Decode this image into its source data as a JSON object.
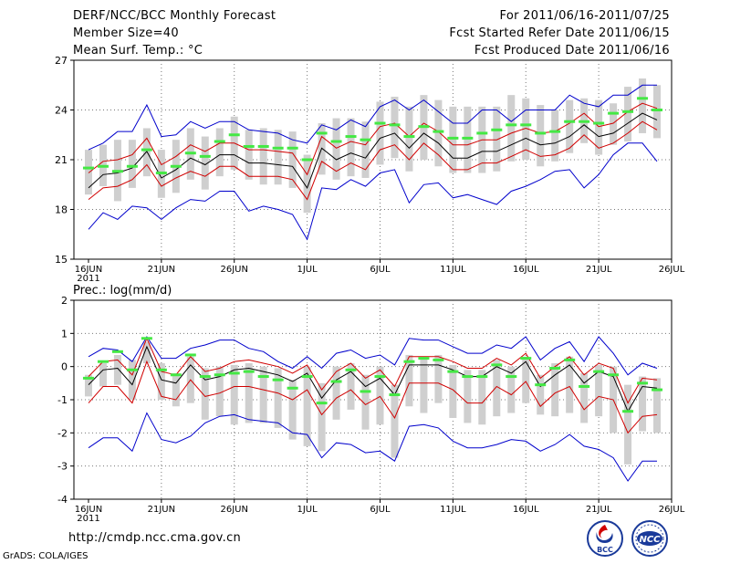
{
  "header": {
    "title": "DERF/NCC/BCC Monthly Forecast",
    "member_size": "Member Size=40",
    "period": "For 2011/06/16-2011/07/25",
    "start_date": "Fcst Started Refer Date 2011/06/15",
    "produced_date": "Fcst Produced Date 2011/06/16"
  },
  "footer": {
    "url": "http://cmdp.ncc.cma.gov.cn",
    "grads": "GrADS: COLA/IGES",
    "logos": [
      "BCC",
      "NCC"
    ]
  },
  "colors": {
    "ensemble_mean": "#000000",
    "std_band": "#d00000",
    "min_max": "#0000cc",
    "member_bar": "#cfcfcf",
    "climatology": "#44e844",
    "grid": "#777777"
  },
  "chart_data": [
    {
      "type": "line",
      "title": "Mean Surf. Temp.: °C",
      "xlabel": "",
      "ylabel": "",
      "x_tick_labels": [
        "16JUN",
        "21JUN",
        "26JUN",
        "1JUL",
        "6JUL",
        "11JUL",
        "16JUL",
        "21JUL",
        "26JUL"
      ],
      "x_tick_days": [
        0,
        5,
        10,
        15,
        20,
        25,
        30,
        35,
        40
      ],
      "x_year_label": "2011",
      "xlim": [
        -1,
        40
      ],
      "ylim": [
        15,
        27
      ],
      "y_ticks": [
        15,
        18,
        21,
        24,
        27
      ],
      "days": [
        0,
        1,
        2,
        3,
        4,
        5,
        6,
        7,
        8,
        9,
        10,
        11,
        12,
        13,
        14,
        15,
        16,
        17,
        18,
        19,
        20,
        21,
        22,
        23,
        24,
        25,
        26,
        27,
        28,
        29,
        30,
        31,
        32,
        33,
        34,
        35,
        36,
        37,
        38,
        39
      ],
      "series": [
        {
          "name": "Ensemble mean",
          "color": "#000000",
          "values": [
            19.3,
            20.1,
            20.2,
            20.5,
            21.5,
            19.9,
            20.4,
            21.1,
            20.7,
            21.3,
            21.3,
            20.8,
            20.8,
            20.7,
            20.6,
            19.3,
            21.7,
            21.0,
            21.4,
            21.1,
            22.3,
            22.6,
            21.7,
            22.6,
            22.0,
            21.1,
            21.1,
            21.5,
            21.5,
            21.9,
            22.3,
            21.9,
            22.0,
            22.4,
            23.1,
            22.4,
            22.6,
            23.2,
            23.8,
            23.4
          ]
        },
        {
          "name": "Mean + std",
          "color": "#d00000",
          "values": [
            20.2,
            20.9,
            21.0,
            21.3,
            22.3,
            20.7,
            21.2,
            21.9,
            21.5,
            22.0,
            22.0,
            21.6,
            21.6,
            21.5,
            21.4,
            20.1,
            22.4,
            21.7,
            22.1,
            21.9,
            23.0,
            23.2,
            22.4,
            23.2,
            22.7,
            21.9,
            21.9,
            22.2,
            22.2,
            22.6,
            22.9,
            22.6,
            22.7,
            23.2,
            23.8,
            23.0,
            23.2,
            23.9,
            24.4,
            24.1
          ]
        },
        {
          "name": "Mean - std",
          "color": "#d00000",
          "values": [
            18.6,
            19.3,
            19.4,
            19.8,
            20.7,
            19.4,
            19.9,
            20.3,
            20.0,
            20.6,
            20.6,
            20.0,
            20.0,
            20.0,
            19.8,
            18.6,
            20.9,
            20.3,
            20.8,
            20.4,
            21.6,
            21.9,
            21.0,
            22.0,
            21.3,
            20.4,
            20.4,
            20.8,
            20.8,
            21.2,
            21.6,
            21.2,
            21.3,
            21.7,
            22.5,
            21.7,
            22.0,
            22.6,
            23.3,
            22.8
          ]
        },
        {
          "name": "Max",
          "color": "#0000cc",
          "values": [
            21.6,
            22.0,
            22.7,
            22.7,
            24.3,
            22.4,
            22.5,
            23.3,
            22.9,
            23.3,
            23.3,
            22.8,
            22.7,
            22.6,
            22.2,
            22.0,
            23.1,
            22.8,
            23.4,
            23.0,
            24.2,
            24.6,
            24.0,
            24.6,
            23.9,
            23.2,
            23.2,
            24.0,
            24.0,
            23.3,
            24.0,
            24.0,
            24.0,
            24.9,
            24.4,
            24.2,
            24.9,
            24.9,
            25.5,
            25.5
          ]
        },
        {
          "name": "Min",
          "color": "#0000cc",
          "values": [
            16.8,
            17.8,
            17.4,
            18.2,
            18.1,
            17.4,
            18.1,
            18.6,
            18.5,
            19.1,
            19.1,
            17.9,
            18.2,
            18.0,
            17.7,
            16.2,
            19.3,
            19.2,
            19.8,
            19.4,
            20.2,
            20.4,
            18.4,
            19.5,
            19.6,
            18.7,
            18.9,
            18.6,
            18.3,
            19.1,
            19.4,
            19.8,
            20.3,
            20.4,
            19.3,
            20.1,
            21.3,
            22.0,
            22.0,
            20.9
          ]
        },
        {
          "name": "Climatology",
          "color": "#44e844",
          "values": [
            20.5,
            20.6,
            20.3,
            20.6,
            21.6,
            20.2,
            20.6,
            21.4,
            21.2,
            22.1,
            22.5,
            21.8,
            21.8,
            21.7,
            21.7,
            21.0,
            22.6,
            22.1,
            22.4,
            22.2,
            23.2,
            23.1,
            22.4,
            23.0,
            22.7,
            22.3,
            22.3,
            22.6,
            22.8,
            23.1,
            23.1,
            22.6,
            22.7,
            23.3,
            23.3,
            23.2,
            23.8,
            23.9,
            24.7,
            24.0
          ]
        },
        {
          "name": "Members high",
          "color": "#cfcfcf",
          "values": [
            21.6,
            21.9,
            22.2,
            22.2,
            22.9,
            21.6,
            22.2,
            22.9,
            22.4,
            22.9,
            23.6,
            22.8,
            22.9,
            22.8,
            22.7,
            21.3,
            23.2,
            23.5,
            23.5,
            23.3,
            24.5,
            24.8,
            24.2,
            24.9,
            24.6,
            24.2,
            24.2,
            24.2,
            24.2,
            24.9,
            24.7,
            24.3,
            24.0,
            24.6,
            24.7,
            24.6,
            24.4,
            25.4,
            25.9,
            25.5
          ]
        },
        {
          "name": "Members low",
          "color": "#cfcfcf",
          "values": [
            18.9,
            19.4,
            18.5,
            19.3,
            20.0,
            18.7,
            19.0,
            19.8,
            19.2,
            20.0,
            20.4,
            19.8,
            19.5,
            19.5,
            19.3,
            17.8,
            20.1,
            19.8,
            20.0,
            19.9,
            20.7,
            21.1,
            20.3,
            21.0,
            20.6,
            20.2,
            20.2,
            20.2,
            20.3,
            20.9,
            21.0,
            20.6,
            20.9,
            21.4,
            22.0,
            21.3,
            21.9,
            22.1,
            22.6,
            22.3
          ]
        }
      ]
    },
    {
      "type": "line",
      "title": "Prec.: log(mm/d)",
      "xlabel": "",
      "ylabel": "",
      "x_tick_labels": [
        "16JUN",
        "21JUN",
        "26JUN",
        "1JUL",
        "6JUL",
        "11JUL",
        "16JUL",
        "21JUL",
        "26JUL"
      ],
      "x_tick_days": [
        0,
        5,
        10,
        15,
        20,
        25,
        30,
        35,
        40
      ],
      "x_year_label": "2011",
      "xlim": [
        -1,
        40
      ],
      "ylim": [
        -4,
        2
      ],
      "y_ticks": [
        -4,
        -3,
        -2,
        -1,
        0,
        1,
        2
      ],
      "days": [
        0,
        1,
        2,
        3,
        4,
        5,
        6,
        7,
        8,
        9,
        10,
        11,
        12,
        13,
        14,
        15,
        16,
        17,
        18,
        19,
        20,
        21,
        22,
        23,
        24,
        25,
        26,
        27,
        28,
        29,
        30,
        31,
        32,
        33,
        34,
        35,
        36,
        37,
        38,
        39
      ],
      "series": [
        {
          "name": "Ensemble mean",
          "color": "#000000",
          "values": [
            -0.55,
            -0.1,
            -0.05,
            -0.55,
            0.6,
            -0.4,
            -0.5,
            0.05,
            -0.4,
            -0.3,
            -0.1,
            -0.05,
            -0.15,
            -0.25,
            -0.45,
            -0.2,
            -0.95,
            -0.4,
            -0.15,
            -0.6,
            -0.35,
            -0.85,
            0.05,
            0.05,
            0.05,
            -0.1,
            -0.3,
            -0.3,
            0.0,
            -0.2,
            0.15,
            -0.6,
            -0.25,
            0.05,
            -0.5,
            -0.15,
            -0.3,
            -1.35,
            -0.6,
            -0.65
          ]
        },
        {
          "name": "Mean + std",
          "color": "#d00000",
          "values": [
            -0.3,
            0.15,
            0.2,
            -0.25,
            0.85,
            -0.15,
            -0.25,
            0.3,
            -0.15,
            -0.05,
            0.15,
            0.2,
            0.1,
            0.0,
            -0.2,
            0.05,
            -0.7,
            -0.15,
            0.1,
            -0.35,
            -0.1,
            -0.6,
            0.3,
            0.3,
            0.3,
            0.15,
            -0.05,
            -0.05,
            0.25,
            0.05,
            0.4,
            -0.35,
            0.0,
            0.3,
            -0.25,
            0.1,
            -0.05,
            -1.1,
            -0.35,
            -0.4
          ]
        },
        {
          "name": "Mean - std",
          "color": "#d00000",
          "values": [
            -1.1,
            -0.6,
            -0.6,
            -1.1,
            0.15,
            -0.9,
            -1.0,
            -0.4,
            -0.9,
            -0.8,
            -0.6,
            -0.6,
            -0.7,
            -0.8,
            -1.0,
            -0.7,
            -1.45,
            -0.95,
            -0.7,
            -1.15,
            -0.9,
            -1.55,
            -0.5,
            -0.5,
            -0.5,
            -0.7,
            -1.1,
            -1.1,
            -0.6,
            -0.85,
            -0.45,
            -1.2,
            -0.8,
            -0.6,
            -1.3,
            -0.9,
            -1.0,
            -2.0,
            -1.5,
            -1.45
          ]
        },
        {
          "name": "Max",
          "color": "#0000cc",
          "values": [
            0.3,
            0.55,
            0.5,
            0.15,
            0.9,
            0.25,
            0.25,
            0.55,
            0.65,
            0.8,
            0.8,
            0.55,
            0.45,
            0.15,
            -0.05,
            0.3,
            -0.05,
            0.4,
            0.5,
            0.25,
            0.35,
            0.05,
            0.85,
            0.8,
            0.8,
            0.6,
            0.4,
            0.4,
            0.65,
            0.55,
            0.9,
            0.2,
            0.55,
            0.75,
            0.15,
            0.9,
            0.4,
            -0.25,
            0.1,
            -0.05
          ]
        },
        {
          "name": "Min",
          "color": "#0000cc",
          "values": [
            -2.45,
            -2.15,
            -2.15,
            -2.55,
            -1.4,
            -2.2,
            -2.3,
            -2.1,
            -1.7,
            -1.5,
            -1.45,
            -1.6,
            -1.65,
            -1.7,
            -2.0,
            -2.05,
            -2.75,
            -2.3,
            -2.35,
            -2.6,
            -2.55,
            -2.85,
            -1.8,
            -1.75,
            -1.85,
            -2.25,
            -2.45,
            -2.45,
            -2.35,
            -2.2,
            -2.25,
            -2.55,
            -2.35,
            -2.05,
            -2.4,
            -2.5,
            -2.75,
            -3.45,
            -2.85,
            -2.85
          ]
        },
        {
          "name": "Climatology",
          "color": "#44e844",
          "values": [
            -0.35,
            0.15,
            0.45,
            -0.1,
            0.85,
            -0.1,
            -0.25,
            0.35,
            -0.3,
            -0.25,
            -0.2,
            -0.15,
            -0.3,
            -0.4,
            -0.65,
            -0.3,
            -1.1,
            -0.45,
            -0.1,
            -0.75,
            -0.3,
            -0.85,
            0.15,
            0.25,
            0.2,
            -0.15,
            -0.3,
            -0.3,
            0.05,
            -0.3,
            0.25,
            -0.55,
            -0.05,
            0.2,
            -0.6,
            -0.15,
            -0.25,
            -1.35,
            -0.5,
            -0.7
          ]
        },
        {
          "name": "Members high",
          "color": "#cfcfcf",
          "values": [
            -0.25,
            0.1,
            0.35,
            0.2,
            0.75,
            0.1,
            -0.2,
            0.3,
            -0.05,
            0.0,
            0.05,
            0.1,
            0.0,
            -0.05,
            -0.4,
            0.0,
            -0.5,
            0.0,
            0.1,
            -0.25,
            0.0,
            -0.55,
            0.35,
            0.3,
            0.35,
            0.05,
            -0.1,
            -0.1,
            0.2,
            0.0,
            0.3,
            -0.25,
            0.1,
            0.3,
            -0.2,
            0.05,
            0.0,
            -0.55,
            -0.3,
            -0.35
          ]
        },
        {
          "name": "Members low",
          "color": "#cfcfcf",
          "values": [
            -0.9,
            -0.6,
            -0.55,
            -1.0,
            0.1,
            -1.0,
            -1.2,
            -1.1,
            -1.6,
            -1.5,
            -1.75,
            -1.7,
            -1.7,
            -1.85,
            -2.2,
            -2.4,
            -2.55,
            -1.6,
            -1.3,
            -1.9,
            -1.75,
            -2.75,
            -1.2,
            -1.4,
            -1.1,
            -1.55,
            -1.7,
            -1.75,
            -1.5,
            -1.4,
            -1.1,
            -1.45,
            -1.5,
            -1.4,
            -1.7,
            -1.5,
            -2.0,
            -2.95,
            -1.95,
            -2.0
          ]
        }
      ]
    }
  ]
}
